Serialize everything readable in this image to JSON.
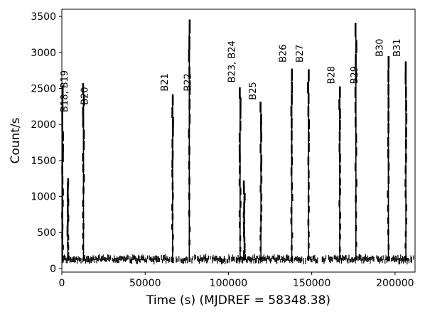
{
  "chart_data": {
    "type": "scatter",
    "title": "",
    "xlabel": "Time (s) (MJDREF = 58348.38)",
    "ylabel": "Count/s",
    "xlim": [
      0,
      212000
    ],
    "ylim": [
      -50,
      3600
    ],
    "x_ticks": [
      {
        "value": 0,
        "label": "0"
      },
      {
        "value": 50000,
        "label": "50000"
      },
      {
        "value": 100000,
        "label": "100000"
      },
      {
        "value": 150000,
        "label": "150000"
      },
      {
        "value": 200000,
        "label": "200000"
      }
    ],
    "y_ticks": [
      {
        "value": 0,
        "label": "0"
      },
      {
        "value": 500,
        "label": "500"
      },
      {
        "value": 1000,
        "label": "1000"
      },
      {
        "value": 1500,
        "label": "1500"
      },
      {
        "value": 2000,
        "label": "2000"
      },
      {
        "value": 2500,
        "label": "2500"
      },
      {
        "value": 3000,
        "label": "3000"
      },
      {
        "value": 3500,
        "label": "3500"
      }
    ],
    "grid": false,
    "marker_color": "#000000",
    "persistent_emission": {
      "level": 130,
      "spread": 60
    },
    "bursts": [
      {
        "time": 400,
        "peak": 2450
      },
      {
        "time": 3600,
        "peak": 1200
      },
      {
        "time": 13000,
        "peak": 2500
      },
      {
        "time": 66500,
        "peak": 2330
      },
      {
        "time": 76500,
        "peak": 3370
      },
      {
        "time": 107000,
        "peak": 2450
      },
      {
        "time": 109500,
        "peak": 1150
      },
      {
        "time": 119500,
        "peak": 2230
      },
      {
        "time": 138000,
        "peak": 2700
      },
      {
        "time": 148000,
        "peak": 2700
      },
      {
        "time": 166800,
        "peak": 2450
      },
      {
        "time": 176500,
        "peak": 3300
      },
      {
        "time": 196000,
        "peak": 2850
      },
      {
        "time": 206500,
        "peak": 2800
      }
    ],
    "annotations": [
      {
        "text": "B18, B19",
        "x": 3500,
        "y": 2170
      },
      {
        "text": "B20",
        "x": 15500,
        "y": 2270
      },
      {
        "text": "B21",
        "x": 63500,
        "y": 2460
      },
      {
        "text": "B22",
        "x": 77500,
        "y": 2460
      },
      {
        "text": "B23, B24",
        "x": 103800,
        "y": 2580
      },
      {
        "text": "B25",
        "x": 116500,
        "y": 2340
      },
      {
        "text": "B26",
        "x": 134500,
        "y": 2860
      },
      {
        "text": "B27",
        "x": 144500,
        "y": 2860
      },
      {
        "text": "B28",
        "x": 163500,
        "y": 2560
      },
      {
        "text": "B29",
        "x": 177500,
        "y": 2560
      },
      {
        "text": "B30",
        "x": 192500,
        "y": 2940
      },
      {
        "text": "B31",
        "x": 203000,
        "y": 2940
      }
    ]
  }
}
